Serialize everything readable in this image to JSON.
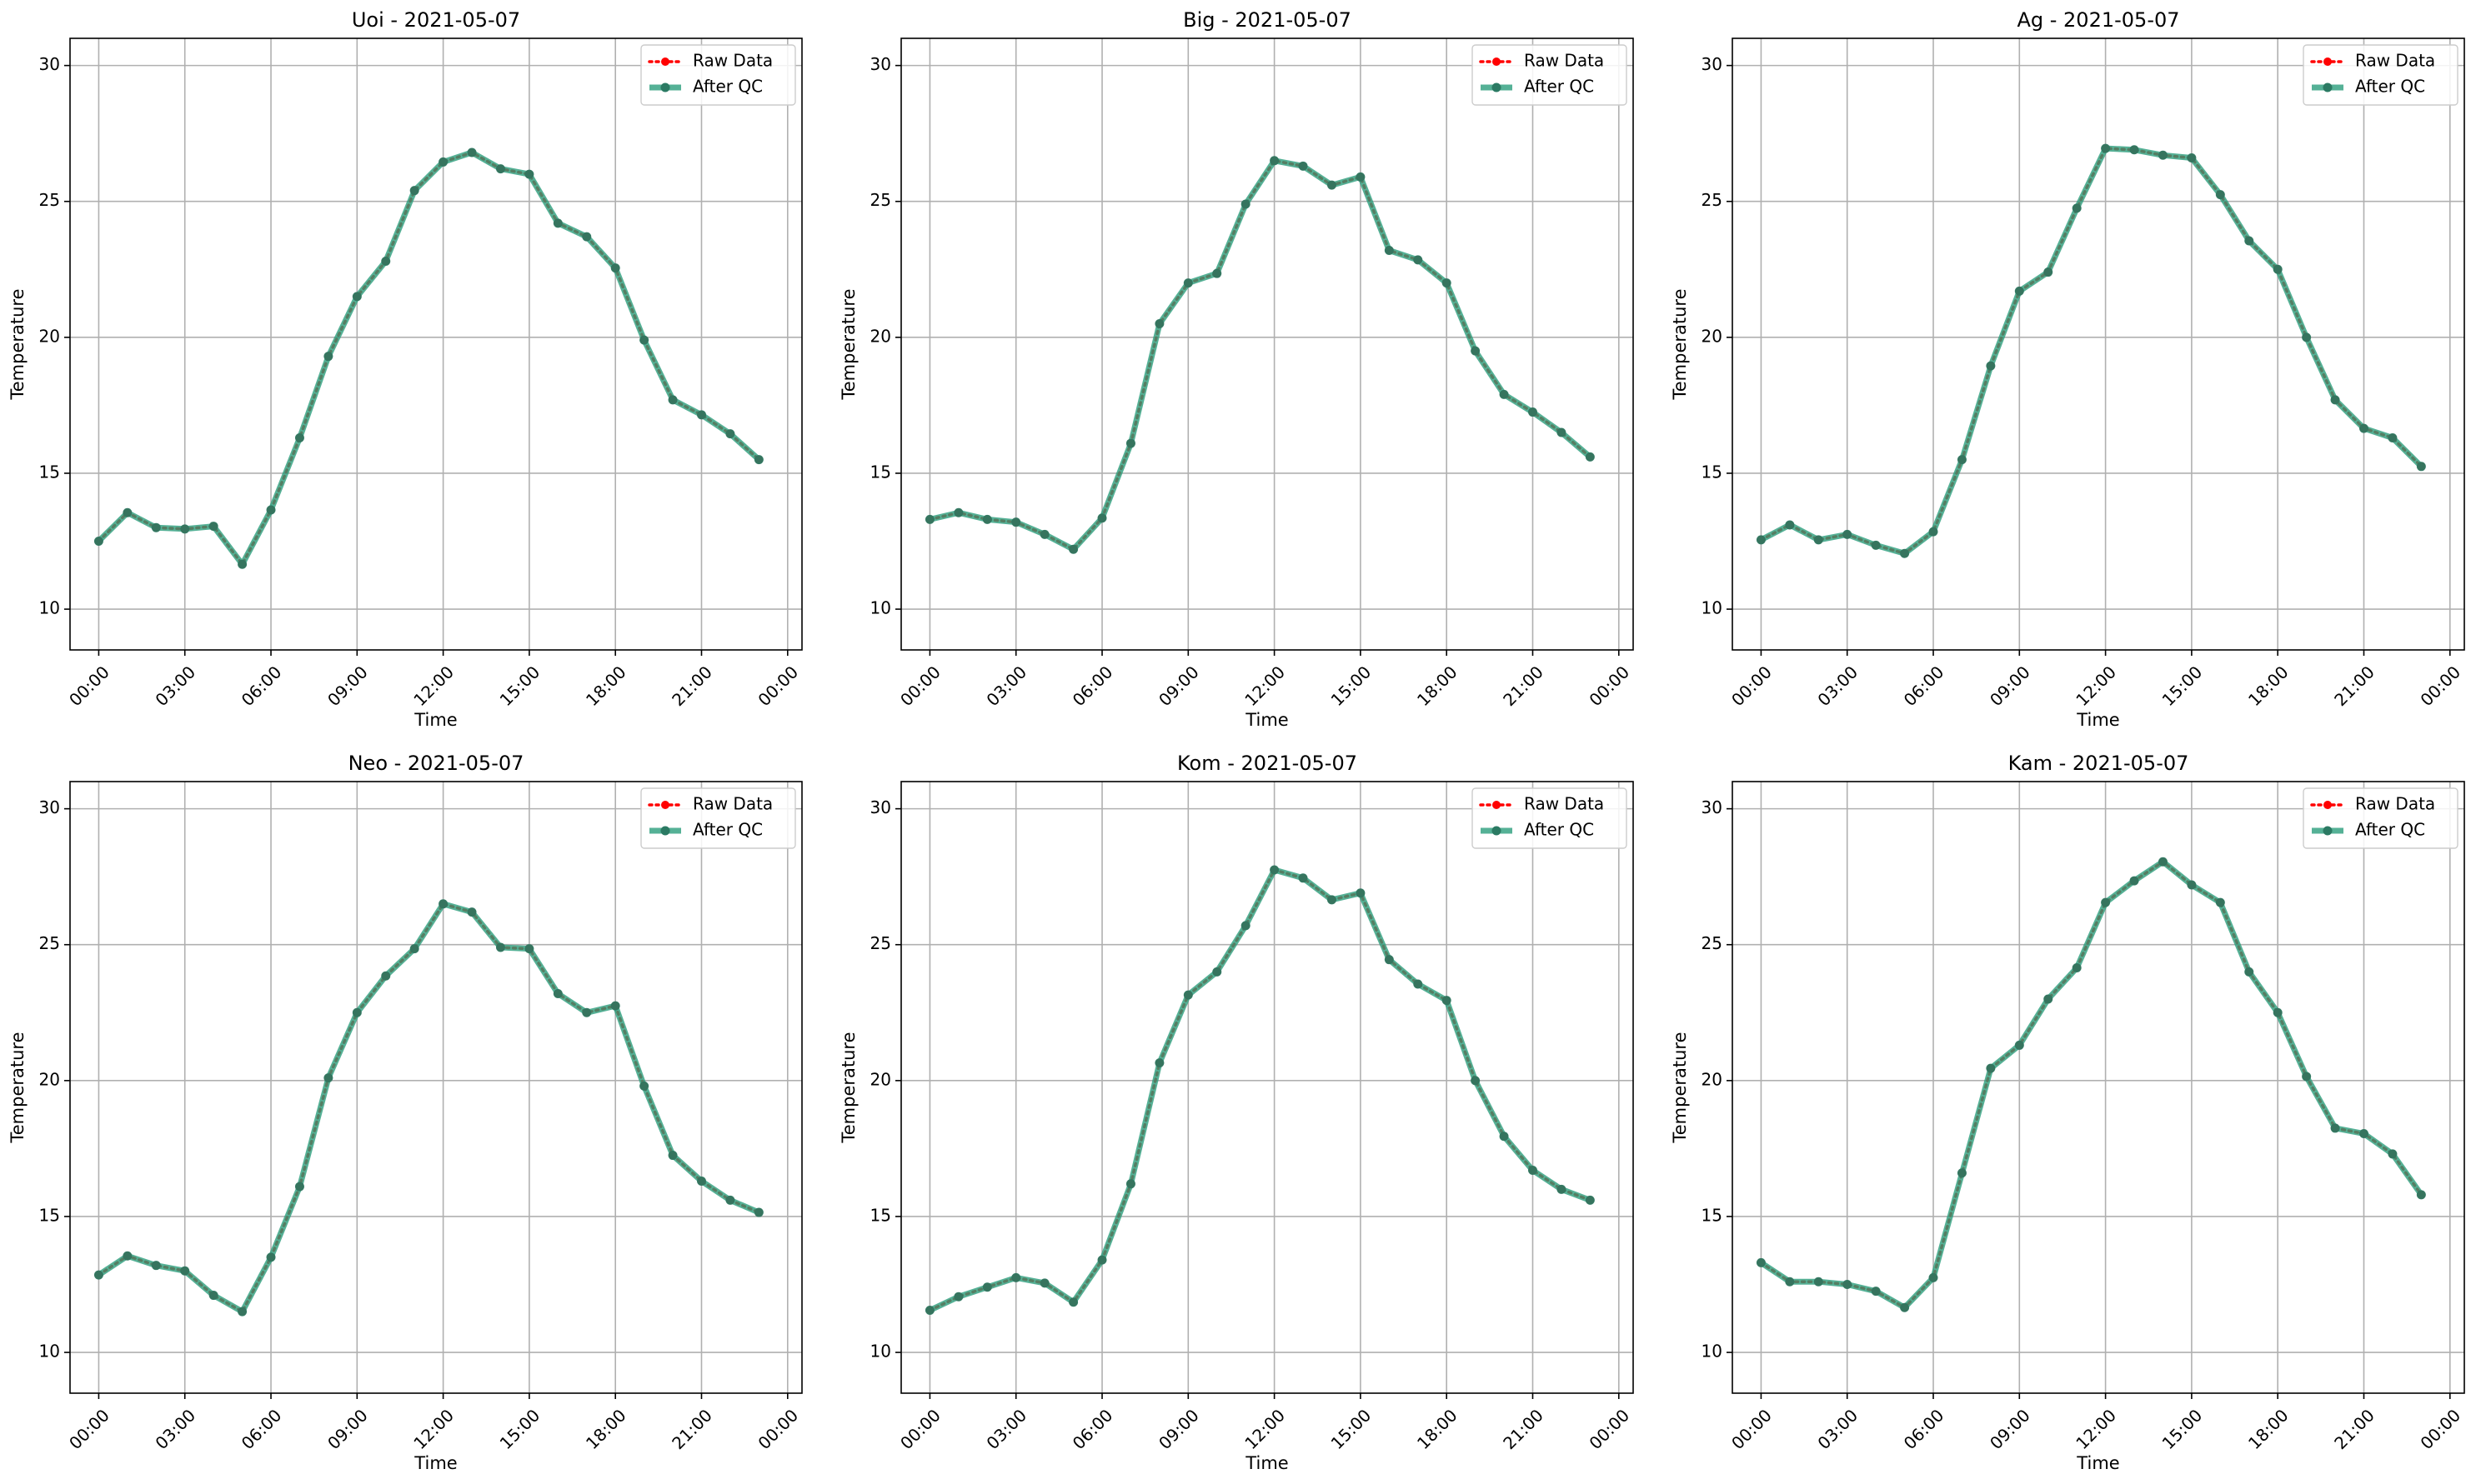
{
  "chart_data": [
    {
      "type": "line",
      "title": "Uoi - 2021-05-07",
      "xlabel": "Time",
      "ylabel": "Temperature",
      "xlim": [
        "2021-05-06 23:00",
        "2021-05-08 00:30"
      ],
      "ylim": [
        8.5,
        31
      ],
      "x_ticks": [
        "00:00",
        "03:00",
        "06:00",
        "09:00",
        "12:00",
        "15:00",
        "18:00",
        "21:00",
        "00:00"
      ],
      "y_ticks": [
        10,
        15,
        20,
        25,
        30
      ],
      "grid": true,
      "legend": "top-right",
      "x_hours": [
        0,
        1,
        2,
        3,
        4,
        5,
        6,
        7,
        8,
        9,
        10,
        11,
        12,
        13,
        14,
        15,
        16,
        17,
        18,
        19,
        20,
        21,
        22,
        23
      ],
      "series": [
        {
          "name": "Raw Data",
          "color": "#ff0000",
          "style": "dotted",
          "values": [
            12.5,
            13.55,
            13.0,
            12.95,
            13.05,
            11.65,
            13.65,
            16.3,
            19.3,
            21.5,
            22.8,
            25.4,
            26.45,
            26.8,
            26.2,
            26.0,
            24.2,
            23.7,
            22.55,
            19.9,
            17.7,
            17.15,
            16.45,
            15.5
          ]
        },
        {
          "name": "After QC",
          "color": "#2a9d7c",
          "style": "solid",
          "values": [
            12.5,
            13.55,
            13.0,
            12.95,
            13.05,
            11.65,
            13.65,
            16.3,
            19.3,
            21.5,
            22.8,
            25.4,
            26.45,
            26.8,
            26.2,
            26.0,
            24.2,
            23.7,
            22.55,
            19.9,
            17.7,
            17.15,
            16.45,
            15.5
          ]
        }
      ]
    },
    {
      "type": "line",
      "title": "Big - 2021-05-07",
      "xlabel": "Time",
      "ylabel": "Temperature",
      "xlim": [
        "2021-05-06 23:00",
        "2021-05-08 00:30"
      ],
      "ylim": [
        8.5,
        31
      ],
      "x_ticks": [
        "00:00",
        "03:00",
        "06:00",
        "09:00",
        "12:00",
        "15:00",
        "18:00",
        "21:00",
        "00:00"
      ],
      "y_ticks": [
        10,
        15,
        20,
        25,
        30
      ],
      "grid": true,
      "legend": "top-right",
      "x_hours": [
        0,
        1,
        2,
        3,
        4,
        5,
        6,
        7,
        8,
        9,
        10,
        11,
        12,
        13,
        14,
        15,
        16,
        17,
        18,
        19,
        20,
        21,
        22,
        23
      ],
      "series": [
        {
          "name": "Raw Data",
          "color": "#ff0000",
          "style": "dotted",
          "values": [
            13.3,
            13.55,
            13.3,
            13.2,
            12.75,
            12.2,
            13.35,
            16.1,
            20.5,
            22.0,
            22.35,
            24.9,
            26.5,
            26.3,
            25.6,
            25.9,
            23.2,
            22.85,
            22.0,
            19.5,
            17.9,
            17.25,
            16.5,
            15.6
          ]
        },
        {
          "name": "After QC",
          "color": "#2a9d7c",
          "style": "solid",
          "values": [
            13.3,
            13.55,
            13.3,
            13.2,
            12.75,
            12.2,
            13.35,
            16.1,
            20.5,
            22.0,
            22.35,
            24.9,
            26.5,
            26.3,
            25.6,
            25.9,
            23.2,
            22.85,
            22.0,
            19.5,
            17.9,
            17.25,
            16.5,
            15.6
          ]
        }
      ]
    },
    {
      "type": "line",
      "title": "Ag - 2021-05-07",
      "xlabel": "Time",
      "ylabel": "Temperature",
      "xlim": [
        "2021-05-06 23:00",
        "2021-05-08 00:30"
      ],
      "ylim": [
        8.5,
        31
      ],
      "x_ticks": [
        "00:00",
        "03:00",
        "06:00",
        "09:00",
        "12:00",
        "15:00",
        "18:00",
        "21:00",
        "00:00"
      ],
      "y_ticks": [
        10,
        15,
        20,
        25,
        30
      ],
      "grid": true,
      "legend": "top-right",
      "x_hours": [
        0,
        1,
        2,
        3,
        4,
        5,
        6,
        7,
        8,
        9,
        10,
        11,
        12,
        13,
        14,
        15,
        16,
        17,
        18,
        19,
        20,
        21,
        22,
        23
      ],
      "series": [
        {
          "name": "Raw Data",
          "color": "#ff0000",
          "style": "dotted",
          "values": [
            12.55,
            13.1,
            12.55,
            12.75,
            12.35,
            12.05,
            12.85,
            15.5,
            18.95,
            21.7,
            22.4,
            24.75,
            26.95,
            26.9,
            26.7,
            26.6,
            25.25,
            23.55,
            22.5,
            20.0,
            17.7,
            16.65,
            16.3,
            15.25
          ]
        },
        {
          "name": "After QC",
          "color": "#2a9d7c",
          "style": "solid",
          "values": [
            12.55,
            13.1,
            12.55,
            12.75,
            12.35,
            12.05,
            12.85,
            15.5,
            18.95,
            21.7,
            22.4,
            24.75,
            26.95,
            26.9,
            26.7,
            26.6,
            25.25,
            23.55,
            22.5,
            20.0,
            17.7,
            16.65,
            16.3,
            15.25
          ]
        }
      ]
    },
    {
      "type": "line",
      "title": "Neo - 2021-05-07",
      "xlabel": "Time",
      "ylabel": "Temperature",
      "xlim": [
        "2021-05-06 23:00",
        "2021-05-08 00:30"
      ],
      "ylim": [
        8.5,
        31
      ],
      "x_ticks": [
        "00:00",
        "03:00",
        "06:00",
        "09:00",
        "12:00",
        "15:00",
        "18:00",
        "21:00",
        "00:00"
      ],
      "y_ticks": [
        10,
        15,
        20,
        25,
        30
      ],
      "grid": true,
      "legend": "top-right",
      "x_hours": [
        0,
        1,
        2,
        3,
        4,
        5,
        6,
        7,
        8,
        9,
        10,
        11,
        12,
        13,
        14,
        15,
        16,
        17,
        18,
        19,
        20,
        21,
        22,
        23
      ],
      "series": [
        {
          "name": "Raw Data",
          "color": "#ff0000",
          "style": "dotted",
          "values": [
            12.85,
            13.55,
            13.2,
            13.0,
            12.1,
            11.5,
            13.5,
            16.1,
            20.1,
            22.5,
            23.85,
            24.85,
            26.5,
            26.2,
            24.9,
            24.85,
            23.2,
            22.5,
            22.75,
            19.8,
            17.25,
            16.3,
            15.6,
            15.15
          ]
        },
        {
          "name": "After QC",
          "color": "#2a9d7c",
          "style": "solid",
          "values": [
            12.85,
            13.55,
            13.2,
            13.0,
            12.1,
            11.5,
            13.5,
            16.1,
            20.1,
            22.5,
            23.85,
            24.85,
            26.5,
            26.2,
            24.9,
            24.85,
            23.2,
            22.5,
            22.75,
            19.8,
            17.25,
            16.3,
            15.6,
            15.15
          ]
        }
      ]
    },
    {
      "type": "line",
      "title": "Kom - 2021-05-07",
      "xlabel": "Time",
      "ylabel": "Temperature",
      "xlim": [
        "2021-05-06 23:00",
        "2021-05-08 00:30"
      ],
      "ylim": [
        8.5,
        31
      ],
      "x_ticks": [
        "00:00",
        "03:00",
        "06:00",
        "09:00",
        "12:00",
        "15:00",
        "18:00",
        "21:00",
        "00:00"
      ],
      "y_ticks": [
        10,
        15,
        20,
        25,
        30
      ],
      "grid": true,
      "legend": "top-right",
      "x_hours": [
        0,
        1,
        2,
        3,
        4,
        5,
        6,
        7,
        8,
        9,
        10,
        11,
        12,
        13,
        14,
        15,
        16,
        17,
        18,
        19,
        20,
        21,
        22,
        23
      ],
      "series": [
        {
          "name": "Raw Data",
          "color": "#ff0000",
          "style": "dotted",
          "values": [
            11.55,
            12.05,
            12.4,
            12.75,
            12.55,
            11.85,
            13.4,
            16.2,
            20.65,
            23.15,
            24.0,
            25.7,
            27.75,
            27.45,
            26.65,
            26.9,
            24.45,
            23.55,
            22.95,
            20.0,
            17.95,
            16.7,
            16.0,
            15.6
          ]
        },
        {
          "name": "After QC",
          "color": "#2a9d7c",
          "style": "solid",
          "values": [
            11.55,
            12.05,
            12.4,
            12.75,
            12.55,
            11.85,
            13.4,
            16.2,
            20.65,
            23.15,
            24.0,
            25.7,
            27.75,
            27.45,
            26.65,
            26.9,
            24.45,
            23.55,
            22.95,
            20.0,
            17.95,
            16.7,
            16.0,
            15.6
          ]
        }
      ]
    },
    {
      "type": "line",
      "title": "Kam - 2021-05-07",
      "xlabel": "Time",
      "ylabel": "Temperature",
      "xlim": [
        "2021-05-06 23:00",
        "2021-05-08 00:30"
      ],
      "ylim": [
        8.5,
        31
      ],
      "x_ticks": [
        "00:00",
        "03:00",
        "06:00",
        "09:00",
        "12:00",
        "15:00",
        "18:00",
        "21:00",
        "00:00"
      ],
      "y_ticks": [
        10,
        15,
        20,
        25,
        30
      ],
      "grid": true,
      "legend": "top-right",
      "x_hours": [
        0,
        1,
        2,
        3,
        4,
        5,
        6,
        7,
        8,
        9,
        10,
        11,
        12,
        13,
        14,
        15,
        16,
        17,
        18,
        19,
        20,
        21,
        22,
        23
      ],
      "series": [
        {
          "name": "Raw Data",
          "color": "#ff0000",
          "style": "dotted",
          "values": [
            13.3,
            12.6,
            12.6,
            12.5,
            12.25,
            11.65,
            12.75,
            16.6,
            20.45,
            21.3,
            23.0,
            24.15,
            26.55,
            27.35,
            28.05,
            27.2,
            26.55,
            24.0,
            22.5,
            20.15,
            18.25,
            18.05,
            17.3,
            15.8
          ]
        },
        {
          "name": "After QC",
          "color": "#2a9d7c",
          "style": "solid",
          "values": [
            13.3,
            12.6,
            12.6,
            12.5,
            12.25,
            11.65,
            12.75,
            16.6,
            20.45,
            21.3,
            23.0,
            24.15,
            26.55,
            27.35,
            28.05,
            27.2,
            26.55,
            24.0,
            22.5,
            20.15,
            18.25,
            18.05,
            17.3,
            15.8
          ]
        }
      ]
    }
  ]
}
